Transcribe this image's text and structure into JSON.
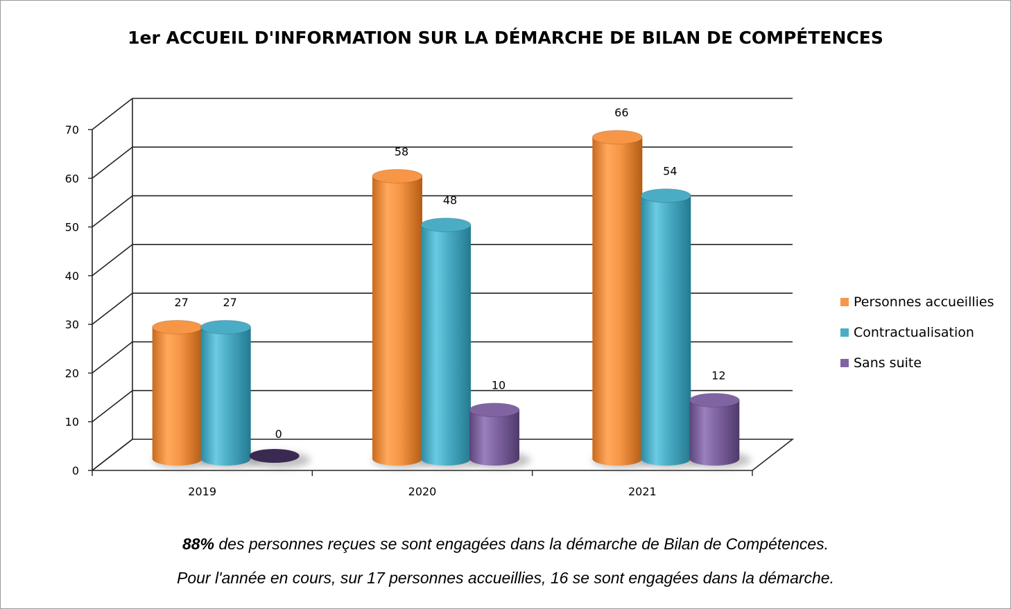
{
  "chart_data": {
    "type": "bar",
    "title": "1er ACCUEIL D'INFORMATION SUR LA DÉMARCHE DE BILAN DE COMPÉTENCES",
    "categories": [
      "2019",
      "2020",
      "2021"
    ],
    "series": [
      {
        "name": "Personnes accueillies",
        "values": [
          27,
          58,
          66
        ],
        "color": "#f79646"
      },
      {
        "name": "Contractualisation",
        "values": [
          27,
          48,
          54
        ],
        "color": "#4bacc6"
      },
      {
        "name": "Sans suite",
        "values": [
          0,
          10,
          12
        ],
        "color": "#8064a2"
      }
    ],
    "y_ticks": [
      "0",
      "10",
      "20",
      "30",
      "40",
      "50",
      "60",
      "70"
    ],
    "ylim": [
      0,
      70
    ],
    "grid": true,
    "legend": "right",
    "style": "3d-cylinder"
  },
  "notes": {
    "line1_bold": "88%",
    "line1_rest": " des personnes reçues se sont engagées dans la démarche de Bilan de Compétences.",
    "line2": "Pour l'année en cours, sur 17 personnes accueillies, 16 se sont engagées dans la démarche."
  }
}
